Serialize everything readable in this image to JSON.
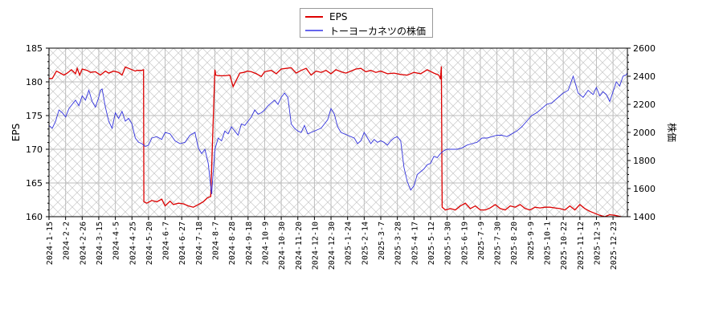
{
  "chart_data": {
    "type": "line",
    "title": "",
    "xlabel": "",
    "ylabel": "EPS",
    "y2label": "株価",
    "ylim": [
      160,
      185
    ],
    "y2lim": [
      1400,
      2600
    ],
    "yticks": [
      160,
      165,
      170,
      175,
      180,
      185
    ],
    "y2ticks": [
      1400,
      1600,
      1800,
      2000,
      2200,
      2400,
      2600
    ],
    "grid": true,
    "legend_position": "top-center",
    "x_tick_labels": [
      "2024-1-15",
      "2024-2-2",
      "2024-2-26",
      "2024-3-15",
      "2024-4-5",
      "2024-4-25",
      "2024-5-20",
      "2024-6-7",
      "2024-6-27",
      "2024-7-18",
      "2024-8-7",
      "2024-8-28",
      "2024-9-18",
      "2024-10-9",
      "2024-10-30",
      "2024-11-20",
      "2024-12-10",
      "2024-12-30",
      "2025-1-24",
      "2025-2-14",
      "2025-3-7",
      "2025-3-28",
      "2025-4-17",
      "2025-5-12",
      "2025-5-30",
      "2025-6-19",
      "2025-7-9",
      "2025-7-30",
      "2025-8-20",
      "2025-9-9",
      "2025-10-1",
      "2025-10-22",
      "2025-11-12",
      "2025-12-3",
      "2025-12-23"
    ],
    "series": [
      {
        "name": "EPS",
        "color": "#dd0000",
        "axis": "left",
        "points_x_index": [
          0,
          0.2,
          0.45,
          0.6,
          0.9,
          1.1,
          1.35,
          1.6,
          1.7,
          1.85,
          2.0,
          2.3,
          2.5,
          2.8,
          3.1,
          3.2,
          3.4,
          3.6,
          3.9,
          4.2,
          4.4,
          4.6,
          4.8,
          5.1,
          5.2,
          5.3,
          5.5,
          5.6,
          5.7,
          5.72,
          5.9,
          6.2,
          6.5,
          6.8,
          7.0,
          7.3,
          7.5,
          7.8,
          8.1,
          8.4,
          8.7,
          9.0,
          9.3,
          9.55,
          9.75,
          10.0,
          10.05,
          10.2,
          10.6,
          10.9,
          11.1,
          11.5,
          11.75,
          11.95,
          12.2,
          12.5,
          12.8,
          13.0,
          13.4,
          13.7,
          14.0,
          14.3,
          14.6,
          14.9,
          15.2,
          15.5,
          15.8,
          16.1,
          16.4,
          16.7,
          17.0,
          17.3,
          17.6,
          17.9,
          18.2,
          18.5,
          18.8,
          19.1,
          19.4,
          19.7,
          20.0,
          20.4,
          20.8,
          21.2,
          21.6,
          22.0,
          22.4,
          22.8,
          23.2,
          23.5,
          23.6,
          23.65,
          23.7,
          23.9,
          24.2,
          24.5,
          24.8,
          25.1,
          25.4,
          25.7,
          26.0,
          26.3,
          26.6,
          26.9,
          27.2,
          27.5,
          27.8,
          28.1,
          28.4,
          28.7,
          29.0,
          29.3,
          29.6,
          29.9,
          30.2,
          30.5,
          30.8,
          31.1,
          31.4,
          31.7,
          32.0,
          32.3,
          32.6,
          32.9,
          33.2,
          33.5,
          33.8,
          34.1,
          34.5,
          34.9
        ],
        "values": [
          180.5,
          180.5,
          181.6,
          181.4,
          181.0,
          181.3,
          181.8,
          181.2,
          182.0,
          181.0,
          181.9,
          181.7,
          181.4,
          181.5,
          181.0,
          181.2,
          181.6,
          181.3,
          181.6,
          181.4,
          181.0,
          182.2,
          182.0,
          181.7,
          181.6,
          181.7,
          181.7,
          181.7,
          181.8,
          162.2,
          162.0,
          162.4,
          162.2,
          162.6,
          161.6,
          162.3,
          161.8,
          162.0,
          161.9,
          161.6,
          161.4,
          161.8,
          162.2,
          162.8,
          163.0,
          181.8,
          181.0,
          180.9,
          180.9,
          181.0,
          179.3,
          181.3,
          181.4,
          181.6,
          181.5,
          181.2,
          180.8,
          181.5,
          181.7,
          181.2,
          181.9,
          182.0,
          182.1,
          181.3,
          181.7,
          182.0,
          181.0,
          181.6,
          181.4,
          181.7,
          181.2,
          181.8,
          181.5,
          181.3,
          181.6,
          181.9,
          182.0,
          181.5,
          181.7,
          181.4,
          181.6,
          181.2,
          181.3,
          181.1,
          181.0,
          181.4,
          181.2,
          181.8,
          181.3,
          181.0,
          180.4,
          182.3,
          161.4,
          161.0,
          161.2,
          161.0,
          161.6,
          162.0,
          161.2,
          161.6,
          161.0,
          161.0,
          161.3,
          161.8,
          161.2,
          161.0,
          161.6,
          161.4,
          161.8,
          161.2,
          161.0,
          161.4,
          161.3,
          161.4,
          161.4,
          161.3,
          161.2,
          161.0,
          161.6,
          161.0,
          161.8,
          161.2,
          160.8,
          160.5,
          160.2,
          160.0,
          160.3,
          160.2,
          160.0
        ]
      },
      {
        "name": "トーヨーカネツの株価",
        "color": "#3333dd",
        "axis": "right",
        "points_x_index": [
          0,
          0.2,
          0.4,
          0.6,
          0.8,
          1.0,
          1.2,
          1.4,
          1.6,
          1.8,
          2.0,
          2.2,
          2.4,
          2.6,
          2.8,
          3.0,
          3.1,
          3.2,
          3.4,
          3.6,
          3.8,
          4.0,
          4.2,
          4.4,
          4.6,
          4.8,
          5.0,
          5.2,
          5.4,
          5.6,
          5.8,
          6.0,
          6.2,
          6.5,
          6.8,
          7.0,
          7.3,
          7.6,
          7.9,
          8.2,
          8.5,
          8.8,
          9.0,
          9.2,
          9.4,
          9.6,
          9.8,
          10.0,
          10.2,
          10.4,
          10.6,
          10.8,
          11.0,
          11.2,
          11.4,
          11.6,
          11.8,
          12.0,
          12.2,
          12.4,
          12.6,
          12.8,
          13.0,
          13.2,
          13.4,
          13.6,
          13.8,
          14.0,
          14.2,
          14.4,
          14.6,
          14.8,
          15.0,
          15.2,
          15.4,
          15.6,
          15.8,
          16.0,
          16.2,
          16.4,
          16.6,
          16.8,
          17.0,
          17.2,
          17.4,
          17.6,
          17.8,
          18.0,
          18.2,
          18.4,
          18.6,
          18.8,
          19.0,
          19.2,
          19.4,
          19.6,
          19.8,
          20.0,
          20.2,
          20.4,
          20.6,
          20.8,
          21.0,
          21.2,
          21.4,
          21.6,
          21.8,
          22.0,
          22.2,
          22.4,
          22.6,
          22.8,
          23.0,
          23.2,
          23.4,
          23.6,
          23.8,
          24.0,
          24.3,
          24.6,
          24.9,
          25.2,
          25.5,
          25.8,
          26.1,
          26.4,
          26.7,
          27.0,
          27.3,
          27.6,
          27.9,
          28.2,
          28.5,
          28.8,
          29.1,
          29.4,
          29.7,
          30.0,
          30.3,
          30.6,
          30.8,
          31.0,
          31.3,
          31.6,
          31.9,
          32.2,
          32.5,
          32.8,
          33.0,
          33.2,
          33.4,
          33.6,
          33.8,
          34.0,
          34.2,
          34.4,
          34.6,
          34.8,
          35.0
        ],
        "values": [
          2050,
          2030,
          2080,
          2160,
          2140,
          2110,
          2170,
          2200,
          2230,
          2190,
          2260,
          2230,
          2300,
          2220,
          2180,
          2250,
          2300,
          2310,
          2180,
          2080,
          2030,
          2140,
          2100,
          2150,
          2080,
          2100,
          2060,
          1960,
          1930,
          1920,
          1900,
          1910,
          1960,
          1970,
          1950,
          2000,
          1990,
          1940,
          1920,
          1930,
          1980,
          2000,
          1890,
          1850,
          1880,
          1780,
          1560,
          1880,
          1960,
          1940,
          2010,
          1990,
          2040,
          2010,
          1980,
          2060,
          2050,
          2080,
          2110,
          2160,
          2130,
          2140,
          2160,
          2190,
          2210,
          2230,
          2200,
          2250,
          2280,
          2250,
          2060,
          2030,
          2010,
          2000,
          2050,
          1990,
          2000,
          2010,
          2020,
          2030,
          2060,
          2090,
          2170,
          2130,
          2040,
          2000,
          1990,
          1980,
          1970,
          1960,
          1920,
          1940,
          2000,
          1960,
          1920,
          1950,
          1930,
          1940,
          1930,
          1910,
          1940,
          1960,
          1970,
          1940,
          1750,
          1650,
          1590,
          1620,
          1700,
          1720,
          1740,
          1770,
          1780,
          1830,
          1820,
          1850,
          1870,
          1880,
          1880,
          1880,
          1890,
          1910,
          1920,
          1930,
          1960,
          1960,
          1970,
          1980,
          1980,
          1970,
          1990,
          2010,
          2040,
          2080,
          2120,
          2140,
          2170,
          2200,
          2210,
          2240,
          2260,
          2280,
          2300,
          2400,
          2280,
          2250,
          2300,
          2270,
          2320,
          2260,
          2290,
          2270,
          2220,
          2290,
          2360,
          2330,
          2400,
          2410,
          2460,
          2400,
          2440,
          2570,
          2540,
          2550
        ]
      }
    ]
  },
  "legend": {
    "items": [
      {
        "label": "EPS",
        "color": "#dd0000"
      },
      {
        "label": "トーヨーカネツの株価",
        "color": "#3333dd"
      }
    ]
  },
  "axes": {
    "left_title": "EPS",
    "right_title": "株価"
  }
}
